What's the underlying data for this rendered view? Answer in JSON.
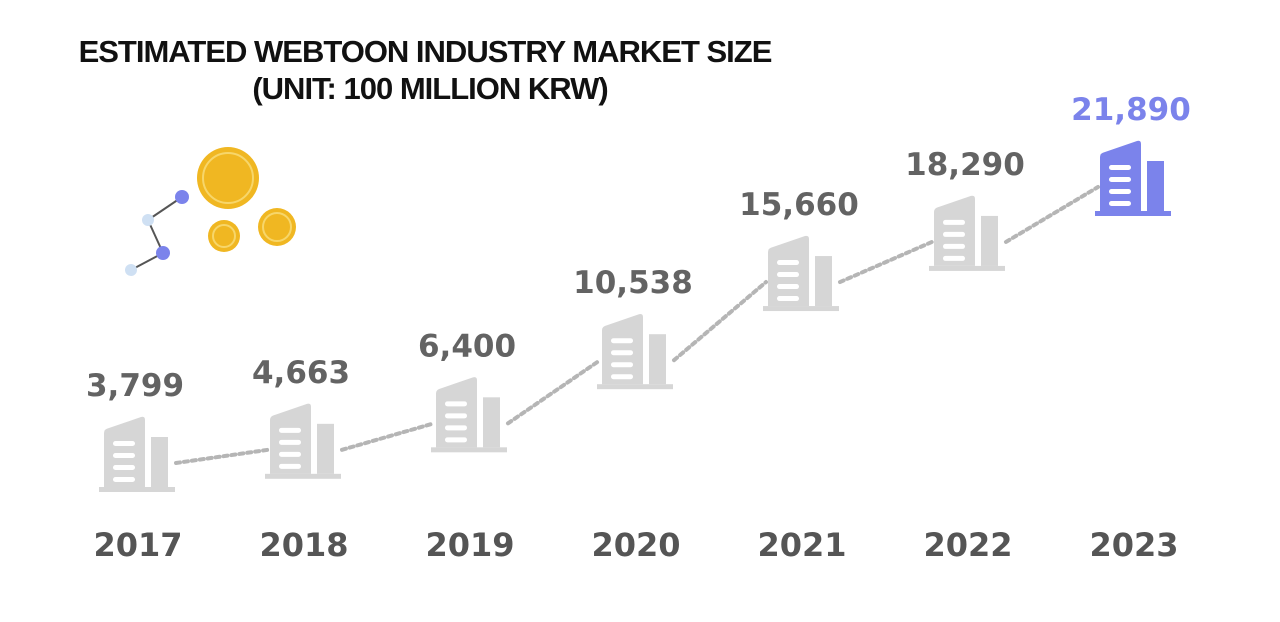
{
  "chart_data": {
    "type": "line",
    "title": "ESTIMATED WEBTOON INDUSTRY MARKET SIZE",
    "subtitle": "(UNIT: 100 MILLION KRW)",
    "categories": [
      "2017",
      "2018",
      "2019",
      "2020",
      "2021",
      "2022",
      "2023"
    ],
    "values": [
      3799,
      4663,
      6400,
      10538,
      15660,
      18290,
      21890
    ],
    "value_labels": [
      "3,799",
      "4,663",
      "6,400",
      "10,538",
      "15,660",
      "18,290",
      "21,890"
    ],
    "highlight_index": 6,
    "grid": false,
    "legend": "none"
  },
  "colors": {
    "muted": "#d6d6d6",
    "label": "#636363",
    "highlight": "#7b83eb",
    "connector": "#b5b5b5",
    "coin": "#f0b722"
  },
  "icons": {
    "marker": "office-building-icon",
    "decoration": "coins-growth-icon"
  }
}
